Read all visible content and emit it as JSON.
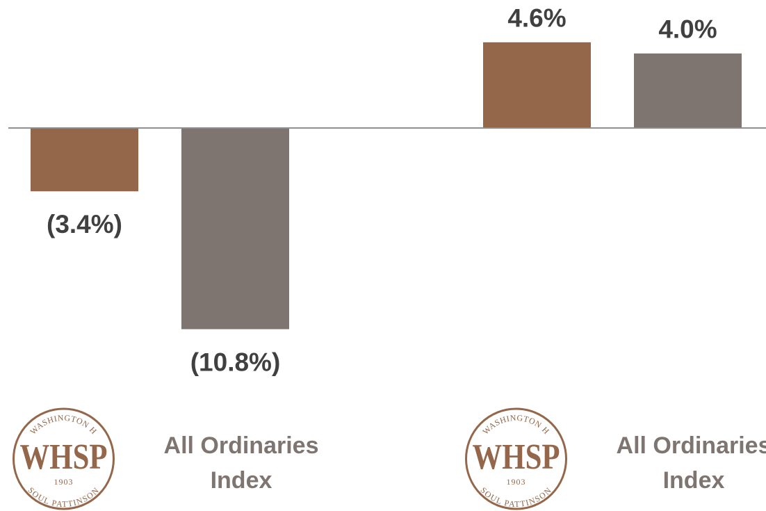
{
  "chart_data": {
    "type": "bar",
    "categories": [
      null,
      null
    ],
    "series": [
      {
        "name": "WHSP",
        "color": "#94674a",
        "values": [
          -3.4,
          4.6
        ],
        "value_labels": [
          "(3.4%)",
          "4.6%"
        ]
      },
      {
        "name": "All Ordinaries Index",
        "color": "#7f7570",
        "values": [
          -10.8,
          4.0
        ],
        "value_labels": [
          "(10.8%)",
          "4.0%"
        ]
      }
    ],
    "ylim": [
      -20.56,
      6.87
    ],
    "logo": {
      "top": "WASHINGTON H",
      "year": "1903",
      "bottom": "SOUL PATTINSON"
    }
  }
}
